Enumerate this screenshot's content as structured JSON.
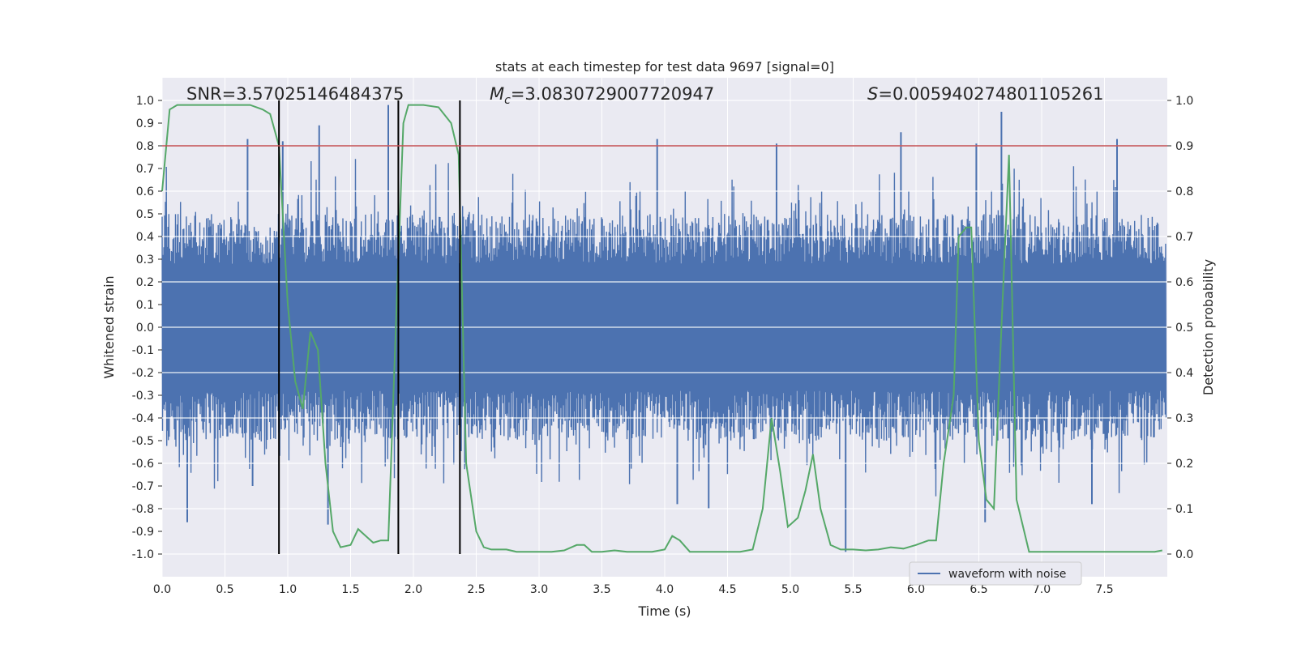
{
  "chart_data": {
    "type": "line",
    "title": "stats at each timestep for test data 9697 [signal=0]",
    "xlabel": "Time (s)",
    "ylabel": "Whitened strain",
    "ylabel_right": "Detection probability",
    "xlim": [
      0.0,
      8.0
    ],
    "ylim": [
      -1.1,
      1.1
    ],
    "ylim_right": [
      -0.05,
      1.05
    ],
    "x_ticks": [
      "0.0",
      "0.5",
      "1.0",
      "1.5",
      "2.0",
      "2.5",
      "3.0",
      "3.5",
      "4.0",
      "4.5",
      "5.0",
      "5.5",
      "6.0",
      "6.5",
      "7.0",
      "7.5"
    ],
    "y_ticks": [
      "1.0",
      "0.9",
      "0.8",
      "0.7",
      "0.6",
      "0.5",
      "0.4",
      "0.3",
      "0.2",
      "0.1",
      "0.0",
      "-0.1",
      "-0.2",
      "-0.3",
      "-0.4",
      "-0.5",
      "-0.6",
      "-0.7",
      "-0.8",
      "-0.9",
      "-1.0"
    ],
    "y_ticks_right": [
      "1.0",
      "0.9",
      "0.8",
      "0.7",
      "0.6",
      "0.5",
      "0.4",
      "0.3",
      "0.2",
      "0.1",
      "0.0"
    ],
    "grid": true,
    "legend": {
      "position": "lower-right",
      "entries": [
        "waveform with noise"
      ]
    },
    "annotations": {
      "snr": "SNR=3.57025146484375",
      "mc_symbol": "M",
      "mc_sub": "c",
      "mc_value": "=3.0830729007720947",
      "s_symbol": "S",
      "s_value": "=0.005940274801105261"
    },
    "threshold_line": {
      "axis": "right",
      "value": 0.9
    },
    "vertical_lines": [
      0.93,
      1.88,
      2.37
    ],
    "waveform": {
      "name": "waveform with noise",
      "sampling": "noise band with occasional spikes between -0.99 and 0.98",
      "spikes": [
        {
          "x": 0.2,
          "y": -0.86
        },
        {
          "x": 0.68,
          "y": 0.83
        },
        {
          "x": 0.72,
          "y": -0.7
        },
        {
          "x": 0.96,
          "y": 0.82
        },
        {
          "x": 1.25,
          "y": 0.89
        },
        {
          "x": 1.8,
          "y": 0.98
        },
        {
          "x": 1.32,
          "y": -0.87
        },
        {
          "x": 3.94,
          "y": 0.83
        },
        {
          "x": 4.1,
          "y": -0.78
        },
        {
          "x": 4.35,
          "y": -0.8
        },
        {
          "x": 4.89,
          "y": 0.81
        },
        {
          "x": 5.44,
          "y": -0.99
        },
        {
          "x": 5.88,
          "y": 0.86
        },
        {
          "x": 6.48,
          "y": 0.81
        },
        {
          "x": 6.55,
          "y": -0.86
        },
        {
          "x": 6.68,
          "y": 0.95
        },
        {
          "x": 7.4,
          "y": -0.78
        },
        {
          "x": 7.6,
          "y": 0.83
        }
      ],
      "color": "#4c72b0"
    },
    "detection_probability": {
      "x": [
        0.0,
        0.06,
        0.12,
        0.2,
        0.3,
        0.4,
        0.5,
        0.6,
        0.7,
        0.8,
        0.86,
        0.93,
        1.0,
        1.06,
        1.12,
        1.18,
        1.24,
        1.3,
        1.36,
        1.42,
        1.5,
        1.56,
        1.62,
        1.68,
        1.74,
        1.8,
        1.86,
        1.92,
        1.96,
        2.02,
        2.08,
        2.2,
        2.3,
        2.36,
        2.42,
        2.5,
        2.56,
        2.62,
        2.68,
        2.74,
        2.82,
        2.9,
        3.1,
        3.2,
        3.3,
        3.36,
        3.42,
        3.5,
        3.6,
        3.7,
        3.8,
        3.9,
        4.0,
        4.06,
        4.12,
        4.2,
        4.3,
        4.5,
        4.6,
        4.7,
        4.78,
        4.85,
        4.92,
        4.98,
        5.06,
        5.12,
        5.18,
        5.24,
        5.32,
        5.4,
        5.5,
        5.6,
        5.7,
        5.8,
        5.9,
        6.0,
        6.1,
        6.16,
        6.22,
        6.3,
        6.34,
        6.4,
        6.44,
        6.5,
        6.56,
        6.62,
        6.68,
        6.74,
        6.8,
        6.9,
        7.0,
        7.2,
        7.4,
        7.6,
        7.8,
        7.9,
        7.96
      ],
      "y": [
        0.8,
        0.98,
        0.99,
        0.99,
        0.99,
        0.99,
        0.99,
        0.99,
        0.99,
        0.98,
        0.97,
        0.9,
        0.55,
        0.38,
        0.32,
        0.49,
        0.45,
        0.2,
        0.05,
        0.015,
        0.02,
        0.055,
        0.04,
        0.025,
        0.03,
        0.03,
        0.5,
        0.95,
        0.99,
        0.99,
        0.99,
        0.985,
        0.95,
        0.88,
        0.2,
        0.05,
        0.015,
        0.01,
        0.01,
        0.01,
        0.005,
        0.005,
        0.005,
        0.008,
        0.02,
        0.02,
        0.005,
        0.005,
        0.008,
        0.005,
        0.005,
        0.005,
        0.01,
        0.04,
        0.03,
        0.005,
        0.005,
        0.005,
        0.005,
        0.01,
        0.1,
        0.3,
        0.18,
        0.06,
        0.08,
        0.14,
        0.22,
        0.1,
        0.02,
        0.01,
        0.01,
        0.008,
        0.01,
        0.015,
        0.012,
        0.02,
        0.03,
        0.03,
        0.2,
        0.35,
        0.7,
        0.72,
        0.72,
        0.25,
        0.12,
        0.1,
        0.5,
        0.88,
        0.12,
        0.005,
        0.005,
        0.005,
        0.005,
        0.005,
        0.005,
        0.005,
        0.008
      ],
      "color": "#55a868"
    },
    "colors": {
      "background": "#eaeaf2",
      "grid": "#ffffff",
      "threshold": "#c44e52",
      "vline": "#000000"
    }
  }
}
